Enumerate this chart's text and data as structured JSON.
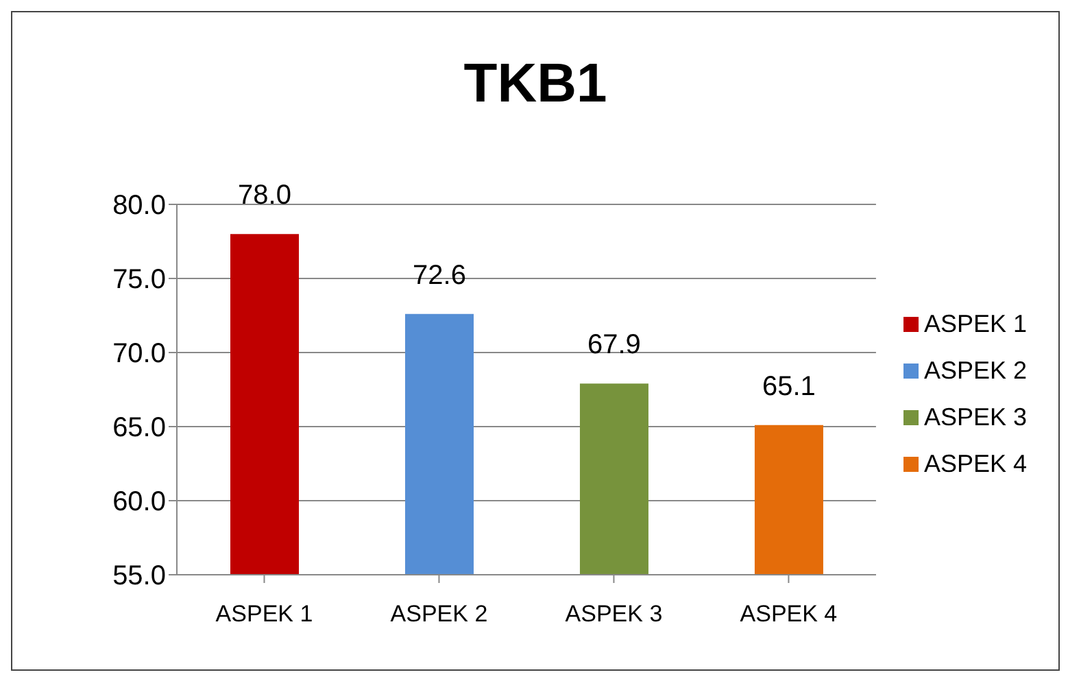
{
  "chart_data": {
    "type": "bar",
    "title": "TKB1",
    "categories": [
      "ASPEK 1",
      "ASPEK 2",
      "ASPEK 3",
      "ASPEK 4"
    ],
    "series": [
      {
        "name": "ASPEK 1",
        "color": "#c00000",
        "values": [
          78.0,
          null,
          null,
          null
        ],
        "value_labels": [
          "78.0",
          null,
          null,
          null
        ]
      },
      {
        "name": "ASPEK 2",
        "color": "#558ed5",
        "values": [
          null,
          72.6,
          null,
          null
        ],
        "value_labels": [
          null,
          "72.6",
          null,
          null
        ]
      },
      {
        "name": "ASPEK 3",
        "color": "#77933c",
        "values": [
          null,
          null,
          67.9,
          null
        ],
        "value_labels": [
          null,
          null,
          "67.9",
          null
        ]
      },
      {
        "name": "ASPEK 4",
        "color": "#e46c0a",
        "values": [
          null,
          null,
          null,
          65.1
        ],
        "value_labels": [
          null,
          null,
          null,
          "65.1"
        ]
      }
    ],
    "ylim": [
      55,
      80
    ],
    "yticks": [
      {
        "value": 55,
        "label": "55.0"
      },
      {
        "value": 60,
        "label": "60.0"
      },
      {
        "value": 65,
        "label": "65.0"
      },
      {
        "value": 70,
        "label": "70.0"
      },
      {
        "value": 75,
        "label": "75.0"
      },
      {
        "value": 80,
        "label": "80.0"
      }
    ],
    "grid": "y",
    "legend": "right"
  }
}
